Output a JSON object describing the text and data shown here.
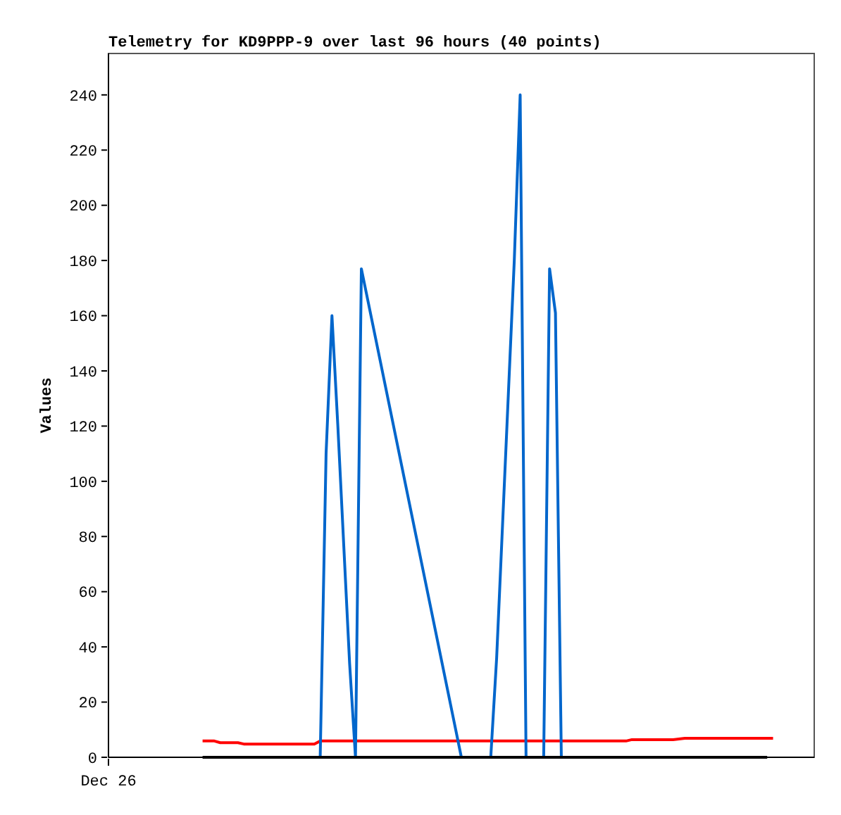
{
  "chart_data": {
    "type": "line",
    "title": "Telemetry for KD9PPP-9 over last 96 hours (40 points)",
    "ylabel": "Values",
    "categories": [
      "Dec 26",
      null,
      null,
      null,
      null,
      null,
      null,
      null,
      null,
      null,
      null,
      null,
      null,
      null,
      null,
      null,
      null,
      null,
      null,
      null,
      null,
      null,
      null,
      null,
      null,
      null,
      null,
      null,
      null,
      null,
      null,
      null,
      null,
      null,
      null,
      null,
      null,
      null,
      null,
      null,
      null,
      null,
      null,
      null,
      null,
      null,
      null,
      null,
      null,
      null,
      null,
      null,
      null,
      null,
      null,
      null,
      null,
      null,
      null,
      null,
      null,
      null,
      null,
      null,
      null,
      null,
      null,
      null,
      null,
      null,
      null,
      null,
      null,
      null,
      null,
      null,
      null,
      null,
      null,
      null,
      null,
      null,
      null,
      null,
      null,
      null,
      null,
      null,
      null,
      null,
      null,
      null,
      null,
      null,
      null,
      null,
      null,
      null,
      null,
      null,
      null,
      null,
      null,
      null,
      null,
      null,
      null,
      null,
      null,
      null,
      null,
      null,
      null,
      null,
      null,
      null,
      null,
      null,
      null,
      null,
      null
    ],
    "ylim": [
      0,
      255
    ],
    "yticks": [
      0,
      20,
      40,
      60,
      80,
      100,
      120,
      140,
      160,
      180,
      200,
      220,
      240
    ],
    "marker": "none",
    "line_style": "solid",
    "series": [
      {
        "color": "#ff0000",
        "values": [
          null,
          null,
          null,
          null,
          null,
          null,
          null,
          null,
          null,
          null,
          null,
          null,
          null,
          null,
          null,
          null,
          5.9,
          null,
          5.9,
          5.3,
          null,
          null,
          5.3,
          4.8,
          null,
          null,
          null,
          null,
          null,
          null,
          null,
          null,
          null,
          null,
          null,
          4.8,
          5.9,
          null,
          null,
          null,
          null,
          null,
          null,
          null,
          null,
          null,
          null,
          null,
          null,
          null,
          null,
          null,
          null,
          null,
          null,
          null,
          null,
          null,
          null,
          null,
          null,
          null,
          null,
          null,
          null,
          null,
          null,
          null,
          null,
          null,
          null,
          null,
          null,
          null,
          null,
          null,
          null,
          null,
          null,
          null,
          null,
          null,
          null,
          null,
          null,
          null,
          null,
          null,
          5.9,
          6.4,
          null,
          null,
          null,
          null,
          null,
          null,
          6.4,
          null,
          6.9,
          6.9,
          null,
          null,
          null,
          null,
          null,
          null,
          null,
          null,
          null,
          null,
          null,
          null,
          6.9,
          6.9,
          null,
          null,
          null,
          null,
          null,
          null,
          null
        ]
      },
      {
        "color": "#0066cc",
        "values": [
          null,
          null,
          null,
          null,
          null,
          null,
          null,
          null,
          null,
          null,
          null,
          null,
          null,
          null,
          null,
          null,
          null,
          null,
          null,
          null,
          null,
          null,
          null,
          null,
          null,
          null,
          null,
          null,
          null,
          null,
          null,
          null,
          null,
          null,
          null,
          null,
          0,
          110,
          160,
          120,
          77,
          34,
          0,
          177,
          null,
          null,
          null,
          null,
          null,
          null,
          null,
          null,
          null,
          null,
          null,
          null,
          null,
          null,
          null,
          null,
          0,
          null,
          null,
          null,
          null,
          0,
          36,
          84,
          132,
          180,
          240,
          0,
          null,
          null,
          0,
          177,
          161,
          0,
          null,
          null,
          null,
          null,
          null,
          null,
          null,
          null,
          null,
          null,
          null,
          null,
          null,
          null,
          null,
          null,
          null,
          null,
          null,
          null,
          null,
          null,
          null,
          null,
          null,
          null,
          null,
          null,
          null,
          null,
          null,
          null,
          null,
          null,
          null,
          null,
          null,
          null,
          null,
          null,
          null,
          null,
          null
        ]
      },
      {
        "color": "#000000",
        "values": [
          null,
          null,
          null,
          null,
          null,
          null,
          null,
          null,
          null,
          null,
          null,
          null,
          null,
          null,
          null,
          null,
          0,
          null,
          null,
          null,
          null,
          null,
          null,
          null,
          null,
          null,
          null,
          null,
          null,
          null,
          null,
          null,
          null,
          null,
          null,
          null,
          null,
          null,
          null,
          null,
          null,
          null,
          null,
          null,
          null,
          null,
          null,
          null,
          null,
          null,
          null,
          null,
          null,
          null,
          null,
          null,
          null,
          null,
          null,
          null,
          null,
          null,
          null,
          null,
          null,
          null,
          null,
          null,
          null,
          null,
          null,
          null,
          null,
          null,
          null,
          null,
          null,
          null,
          null,
          null,
          null,
          null,
          null,
          null,
          null,
          null,
          null,
          null,
          null,
          null,
          null,
          null,
          null,
          null,
          null,
          null,
          null,
          null,
          null,
          null,
          null,
          null,
          null,
          null,
          null,
          null,
          null,
          null,
          null,
          null,
          null,
          null,
          0,
          null,
          null,
          null,
          null,
          null,
          null,
          null,
          null
        ]
      }
    ]
  }
}
